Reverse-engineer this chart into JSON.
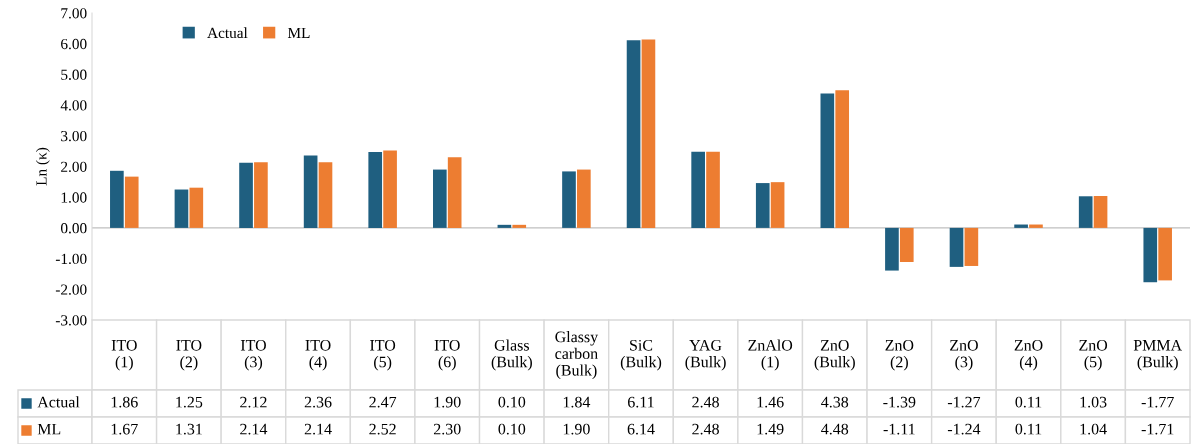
{
  "chart_data": {
    "type": "bar",
    "ylabel": "Ln (κ)",
    "categories": [
      "ITO\n(1)",
      "ITO\n(2)",
      "ITO\n(3)",
      "ITO\n(4)",
      "ITO\n(5)",
      "ITO\n(6)",
      "Glass\n(Bulk)",
      "Glassy\ncarbon\n(Bulk)",
      "SiC\n(Bulk)",
      "YAG\n(Bulk)",
      "ZnAlO\n(1)",
      "ZnO\n(Bulk)",
      "ZnO\n(2)",
      "ZnO\n(3)",
      "ZnO\n(4)",
      "ZnO\n(5)",
      "PMMA\n(Bulk)"
    ],
    "series": [
      {
        "name": "Actual",
        "color": "#1f5f80",
        "values": [
          1.86,
          1.25,
          2.12,
          2.36,
          2.47,
          1.9,
          0.1,
          1.84,
          6.11,
          2.48,
          1.46,
          4.38,
          -1.39,
          -1.27,
          0.11,
          1.03,
          -1.77
        ],
        "value_labels": [
          "1.86",
          "1.25",
          "2.12",
          "2.36",
          "2.47",
          "1.90",
          "0.10",
          "1.84",
          "6.11",
          "2.48",
          "1.46",
          "4.38",
          "-1.39",
          "-1.27",
          "0.11",
          "1.03",
          "-1.77"
        ]
      },
      {
        "name": "ML",
        "color": "#ed7d31",
        "values": [
          1.67,
          1.31,
          2.14,
          2.14,
          2.52,
          2.3,
          0.1,
          1.9,
          6.14,
          2.48,
          1.49,
          4.48,
          -1.11,
          -1.24,
          0.11,
          1.04,
          -1.71
        ],
        "value_labels": [
          "1.67",
          "1.31",
          "2.14",
          "2.14",
          "2.52",
          "2.30",
          "0.10",
          "1.90",
          "6.14",
          "2.48",
          "1.49",
          "4.48",
          "-1.11",
          "-1.24",
          "0.11",
          "1.04",
          "-1.71"
        ]
      }
    ],
    "ylim": [
      -3,
      7
    ],
    "yticks": [
      {
        "value": -3,
        "label": "-3.00"
      },
      {
        "value": -2,
        "label": "-2.00"
      },
      {
        "value": -1,
        "label": "-1.00"
      },
      {
        "value": 0,
        "label": "0.00"
      },
      {
        "value": 1,
        "label": "1.00"
      },
      {
        "value": 2,
        "label": "2.00"
      },
      {
        "value": 3,
        "label": "3.00"
      },
      {
        "value": 4,
        "label": "4.00"
      },
      {
        "value": 5,
        "label": "5.00"
      },
      {
        "value": 6,
        "label": "6.00"
      },
      {
        "value": 7,
        "label": "7.00"
      }
    ],
    "legend": "top left"
  }
}
